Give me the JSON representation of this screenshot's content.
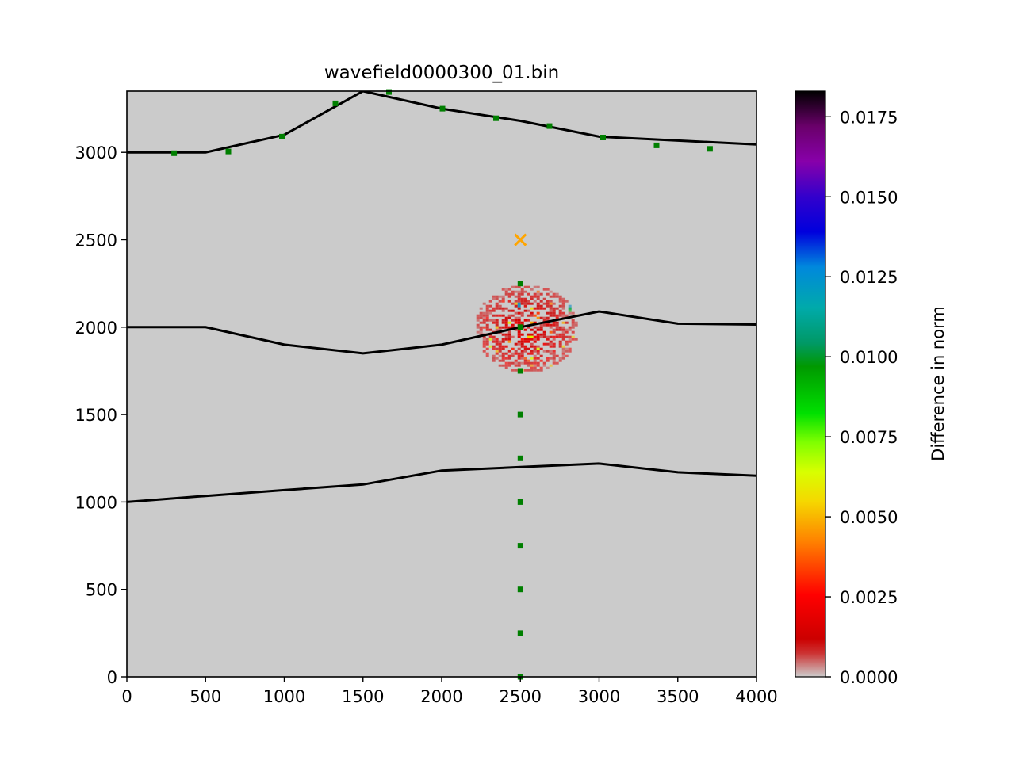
{
  "chart_data": {
    "type": "heatmap",
    "title": "wavefield0000300_01.bin",
    "xlabel": "",
    "ylabel": "",
    "xlim": [
      0,
      4000
    ],
    "ylim": [
      0,
      3350
    ],
    "x_ticks": [
      0,
      500,
      1000,
      1500,
      2000,
      2500,
      3000,
      3500,
      4000
    ],
    "y_ticks": [
      0,
      500,
      1000,
      1500,
      2000,
      2500,
      3000
    ],
    "x_tick_labels": [
      "0",
      "500",
      "1000",
      "1500",
      "2000",
      "2500",
      "3000",
      "3500",
      "4000"
    ],
    "y_tick_labels": [
      "0",
      "500",
      "1000",
      "1500",
      "2000",
      "2500",
      "3000"
    ],
    "background_color": "#cbcbcb",
    "grid": false,
    "interfaces": [
      {
        "points": [
          [
            0,
            3000
          ],
          [
            500,
            3000
          ],
          [
            1000,
            3100
          ],
          [
            1500,
            3350
          ],
          [
            2000,
            3250
          ],
          [
            2500,
            3180
          ],
          [
            3000,
            3090
          ],
          [
            4000,
            3045
          ]
        ]
      },
      {
        "points": [
          [
            0,
            2000
          ],
          [
            500,
            2000
          ],
          [
            1000,
            1900
          ],
          [
            1500,
            1850
          ],
          [
            2000,
            1900
          ],
          [
            2500,
            2000
          ],
          [
            3000,
            2090
          ],
          [
            3500,
            2020
          ],
          [
            4000,
            2015
          ]
        ]
      },
      {
        "points": [
          [
            0,
            1000
          ],
          [
            500,
            1035
          ],
          [
            1000,
            1068
          ],
          [
            1500,
            1100
          ],
          [
            2000,
            1180
          ],
          [
            2500,
            1200
          ],
          [
            3000,
            1220
          ],
          [
            3500,
            1170
          ],
          [
            4000,
            1150
          ]
        ]
      }
    ],
    "receivers": {
      "color": "#007f00",
      "points": [
        [
          300,
          2995
        ],
        [
          645,
          3005
        ],
        [
          985,
          3090
        ],
        [
          1325,
          3280
        ],
        [
          1665,
          3345
        ],
        [
          2005,
          3250
        ],
        [
          2345,
          3195
        ],
        [
          2685,
          3150
        ],
        [
          3025,
          3085
        ],
        [
          3365,
          3040
        ],
        [
          3705,
          3020
        ],
        [
          2500,
          2250
        ],
        [
          2500,
          2000
        ],
        [
          2500,
          1750
        ],
        [
          2500,
          1500
        ],
        [
          2500,
          1250
        ],
        [
          2500,
          1000
        ],
        [
          2500,
          750
        ],
        [
          2500,
          500
        ],
        [
          2500,
          250
        ],
        [
          2500,
          0
        ]
      ]
    },
    "source": {
      "x": 2500,
      "y": 2500,
      "marker": "x",
      "color": "#ffa500"
    },
    "anomaly": {
      "center_x": 2530,
      "center_y": 2000,
      "radius_x": 330,
      "radius_y": 250
    },
    "colorbar": {
      "label": "Difference in norm",
      "min": 0.0,
      "max": 0.0183,
      "ticks": [
        0.0,
        0.0025,
        0.005,
        0.0075,
        0.01,
        0.0125,
        0.015,
        0.0175
      ],
      "tick_labels": [
        "0.0000",
        "0.0025",
        "0.0050",
        "0.0075",
        "0.0100",
        "0.0125",
        "0.0150",
        "0.0175"
      ],
      "colormap": "nipy_spectral_r"
    }
  }
}
